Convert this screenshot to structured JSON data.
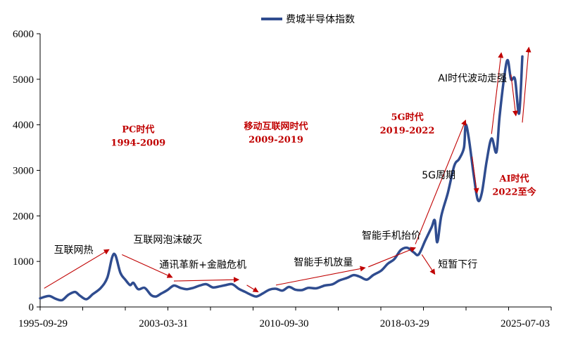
{
  "chart_data": {
    "type": "line",
    "legend": {
      "label": "费城半导体指数",
      "position": "top-center"
    },
    "colors": {
      "series": "#2f4c8f",
      "arrow": "#c00000",
      "axis": "#000000"
    },
    "y_axis": {
      "ticks": [
        0,
        1000,
        2000,
        3000,
        4000,
        5000,
        6000
      ],
      "ylim": [
        0,
        6000
      ]
    },
    "x_axis": {
      "tick_labels": [
        "1995-09-29",
        "2003-03-31",
        "2010-09-30",
        "2018-03-29",
        "2025-07-03"
      ],
      "minor_tick_count": 13
    },
    "series": [
      {
        "values": [
          [
            1995.75,
            190
          ],
          [
            1996.3,
            240
          ],
          [
            1996.7,
            180
          ],
          [
            1997.1,
            150
          ],
          [
            1997.5,
            270
          ],
          [
            1997.9,
            330
          ],
          [
            1998.2,
            250
          ],
          [
            1998.6,
            170
          ],
          [
            1999.0,
            280
          ],
          [
            1999.5,
            420
          ],
          [
            1999.9,
            650
          ],
          [
            2000.2,
            1100
          ],
          [
            2000.4,
            1130
          ],
          [
            2000.7,
            750
          ],
          [
            2001.0,
            600
          ],
          [
            2001.3,
            480
          ],
          [
            2001.5,
            530
          ],
          [
            2001.8,
            390
          ],
          [
            2002.2,
            420
          ],
          [
            2002.6,
            260
          ],
          [
            2002.9,
            230
          ],
          [
            2003.2,
            290
          ],
          [
            2003.6,
            370
          ],
          [
            2004.0,
            470
          ],
          [
            2004.4,
            420
          ],
          [
            2004.8,
            390
          ],
          [
            2005.2,
            420
          ],
          [
            2005.6,
            470
          ],
          [
            2006.0,
            500
          ],
          [
            2006.4,
            430
          ],
          [
            2006.8,
            450
          ],
          [
            2007.2,
            480
          ],
          [
            2007.6,
            500
          ],
          [
            2008.0,
            400
          ],
          [
            2008.4,
            330
          ],
          [
            2008.8,
            260
          ],
          [
            2009.1,
            230
          ],
          [
            2009.5,
            300
          ],
          [
            2009.9,
            380
          ],
          [
            2010.3,
            400
          ],
          [
            2010.7,
            360
          ],
          [
            2011.1,
            440
          ],
          [
            2011.5,
            380
          ],
          [
            2011.9,
            370
          ],
          [
            2012.3,
            420
          ],
          [
            2012.8,
            410
          ],
          [
            2013.3,
            470
          ],
          [
            2013.8,
            500
          ],
          [
            2014.2,
            580
          ],
          [
            2014.7,
            640
          ],
          [
            2015.1,
            700
          ],
          [
            2015.5,
            660
          ],
          [
            2015.9,
            600
          ],
          [
            2016.3,
            700
          ],
          [
            2016.8,
            800
          ],
          [
            2017.2,
            950
          ],
          [
            2017.6,
            1050
          ],
          [
            2018.0,
            1250
          ],
          [
            2018.4,
            1300
          ],
          [
            2018.8,
            1200
          ],
          [
            2019.1,
            1150
          ],
          [
            2019.5,
            1450
          ],
          [
            2019.9,
            1750
          ],
          [
            2020.1,
            1900
          ],
          [
            2020.25,
            1420
          ],
          [
            2020.5,
            2000
          ],
          [
            2020.9,
            2500
          ],
          [
            2021.3,
            3100
          ],
          [
            2021.6,
            3250
          ],
          [
            2021.9,
            3500
          ],
          [
            2022.0,
            4000
          ],
          [
            2022.2,
            3700
          ],
          [
            2022.5,
            2900
          ],
          [
            2022.75,
            2350
          ],
          [
            2023.0,
            2500
          ],
          [
            2023.3,
            3200
          ],
          [
            2023.6,
            3700
          ],
          [
            2023.9,
            3400
          ],
          [
            2024.1,
            4200
          ],
          [
            2024.4,
            5100
          ],
          [
            2024.6,
            5420
          ],
          [
            2024.8,
            5000
          ],
          [
            2025.05,
            5000
          ],
          [
            2025.3,
            4250
          ],
          [
            2025.5,
            5500
          ]
        ]
      }
    ],
    "arrows": [
      [
        1996.0,
        410,
        2000.0,
        1260
      ],
      [
        2000.8,
        1150,
        2003.9,
        650
      ],
      [
        2004.0,
        570,
        2008.0,
        600
      ],
      [
        2008.5,
        480,
        2009.2,
        330
      ],
      [
        2010.3,
        480,
        2015.8,
        860
      ],
      [
        2016.0,
        880,
        2018.9,
        1300
      ],
      [
        2018.9,
        1380,
        2022.0,
        4100
      ],
      [
        2019.3,
        1150,
        2020.1,
        720
      ],
      [
        2022.4,
        3300,
        2022.7,
        2500
      ],
      [
        2023.6,
        3800,
        2024.2,
        5580
      ],
      [
        2024.8,
        5100,
        2025.1,
        4200
      ],
      [
        2025.5,
        4050,
        2025.9,
        5700
      ]
    ],
    "annotations_black": [
      {
        "text": "互联网热",
        "x": 1996.6,
        "y": 1180
      },
      {
        "text": "互联网泡沫破灭",
        "x": 2001.5,
        "y": 1400
      },
      {
        "text": "通讯革新+金融危机",
        "x": 2003.1,
        "y": 855
      },
      {
        "text": "智能手机放量",
        "x": 2011.4,
        "y": 910
      },
      {
        "text": "智能手机抬价",
        "x": 2015.6,
        "y": 1500
      },
      {
        "text": "短暂下行",
        "x": 2020.3,
        "y": 860
      },
      {
        "text": "5G周期",
        "x": 2019.3,
        "y": 2820
      },
      {
        "text": "AI时代波动走强",
        "x": 2020.3,
        "y": 4950
      }
    ],
    "annotations_red": [
      {
        "text": "PC时代",
        "x": 2001.8,
        "y": 3830
      },
      {
        "text": "1994-2009",
        "x": 2001.8,
        "y": 3540
      },
      {
        "text": "移动互联网时代",
        "x": 2010.3,
        "y": 3900
      },
      {
        "text": "2009-2019",
        "x": 2010.3,
        "y": 3610
      },
      {
        "text": "5G时代",
        "x": 2018.4,
        "y": 4100
      },
      {
        "text": "2019-2022",
        "x": 2018.4,
        "y": 3810
      },
      {
        "text": "AI时代",
        "x": 2025.0,
        "y": 2750
      },
      {
        "text": "2022至今",
        "x": 2025.0,
        "y": 2460
      }
    ]
  }
}
